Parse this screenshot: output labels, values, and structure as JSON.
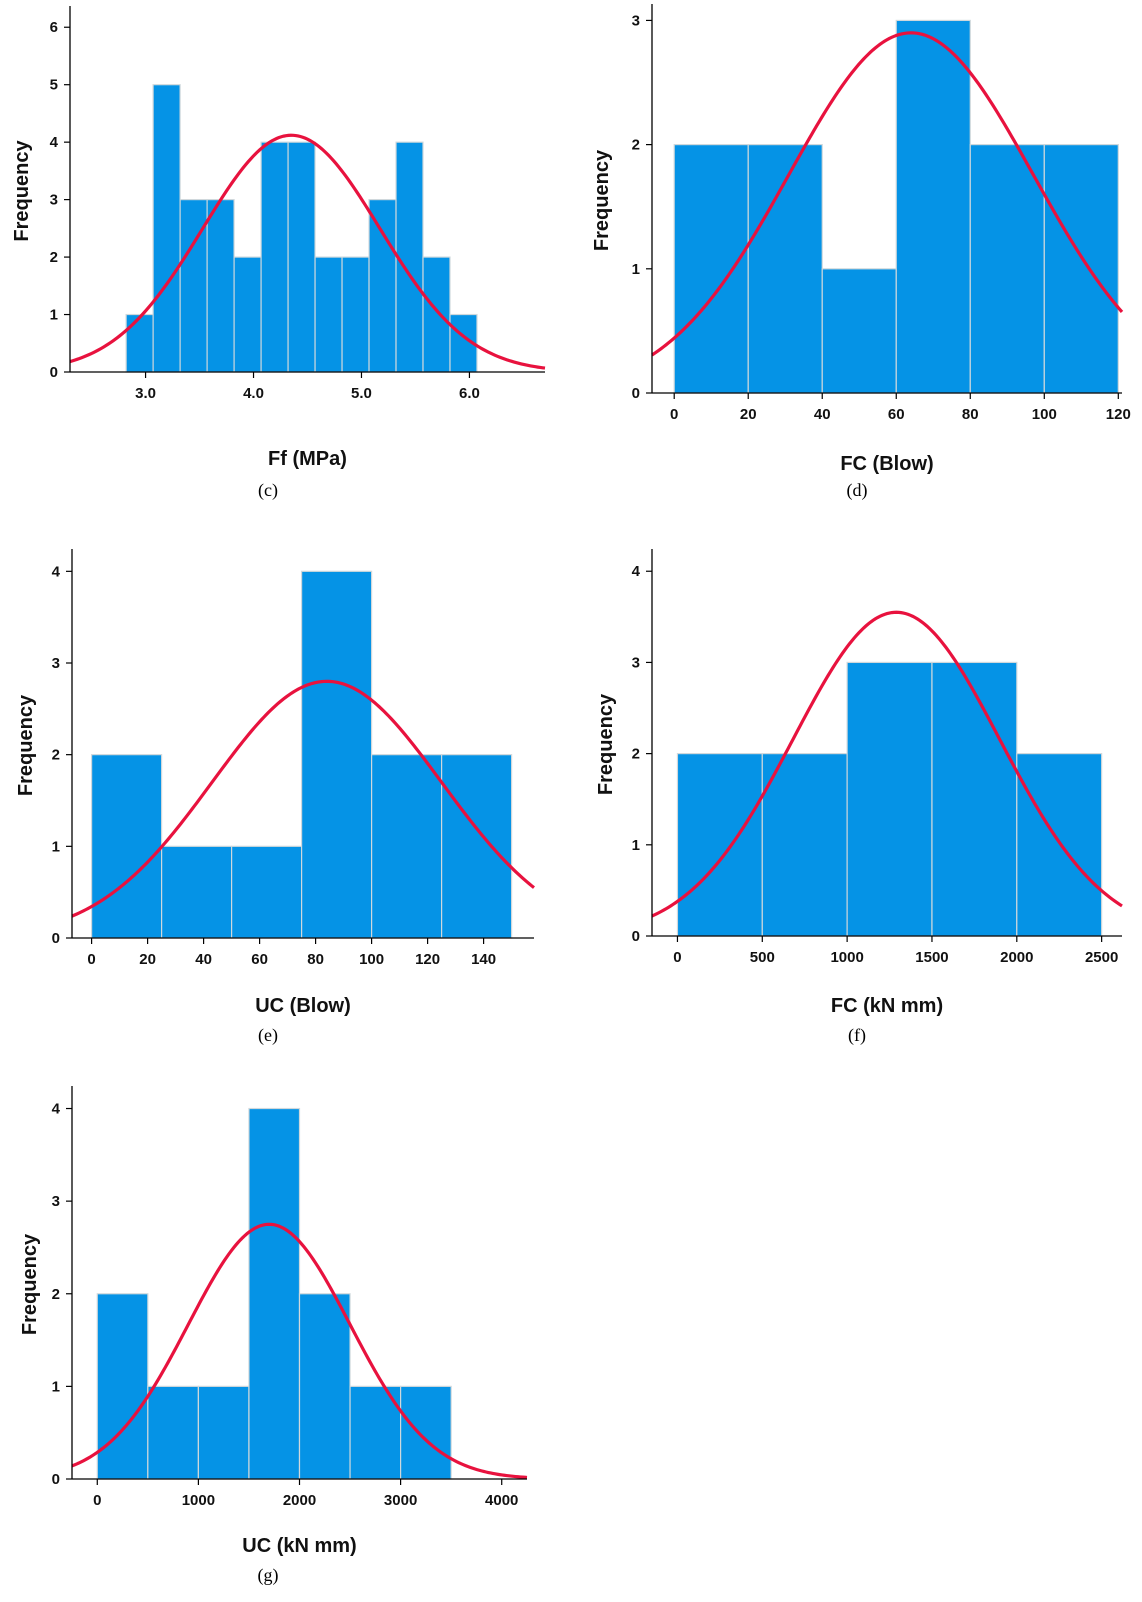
{
  "colors": {
    "bar": "#0593e6",
    "bar_edge": "#cfd8dc",
    "curve": "#e8123e",
    "axis": "#000000"
  },
  "chart_data": [
    {
      "id": "c",
      "caption": "(c)",
      "type": "bar",
      "xlabel": "Ff (MPa)",
      "ylabel": "Frequency",
      "xlim": [
        2.3,
        6.7
      ],
      "ylim": [
        0,
        6.3
      ],
      "xticks": [
        "3.0",
        "4.0",
        "5.0",
        "6.0"
      ],
      "yticks": [
        0,
        1,
        2,
        3,
        4,
        5,
        6
      ],
      "bin_width": 0.25,
      "bins": [
        {
          "start": 2.82,
          "value": 1
        },
        {
          "start": 3.07,
          "value": 5
        },
        {
          "start": 3.32,
          "value": 3
        },
        {
          "start": 3.57,
          "value": 3
        },
        {
          "start": 3.82,
          "value": 2
        },
        {
          "start": 4.07,
          "value": 4
        },
        {
          "start": 4.32,
          "value": 4
        },
        {
          "start": 4.57,
          "value": 2
        },
        {
          "start": 4.82,
          "value": 2
        },
        {
          "start": 5.07,
          "value": 3
        },
        {
          "start": 5.32,
          "value": 4
        },
        {
          "start": 5.57,
          "value": 2
        },
        {
          "start": 5.82,
          "value": 1
        }
      ],
      "normal_curve": {
        "mean": 4.35,
        "sd": 0.82,
        "peak": 4.12
      }
    },
    {
      "id": "d",
      "caption": "(d)",
      "type": "bar",
      "xlabel": "FC (Blow)",
      "ylabel": "Frequency",
      "xlim": [
        -6,
        121
      ],
      "ylim": [
        0,
        3.1
      ],
      "xticks": [
        "0",
        "20",
        "40",
        "60",
        "80",
        "100",
        "120"
      ],
      "yticks": [
        0,
        1,
        2,
        3
      ],
      "bin_width": 20,
      "bins": [
        {
          "start": 0,
          "value": 2
        },
        {
          "start": 20,
          "value": 2
        },
        {
          "start": 40,
          "value": 1
        },
        {
          "start": 60,
          "value": 3
        },
        {
          "start": 80,
          "value": 2
        },
        {
          "start": 100,
          "value": 2
        }
      ],
      "normal_curve": {
        "mean": 64,
        "sd": 33,
        "peak": 2.9
      }
    },
    {
      "id": "e",
      "caption": "(e)",
      "type": "bar",
      "xlabel": "UC (Blow)",
      "ylabel": "Frequency",
      "xlim": [
        -7,
        158
      ],
      "ylim": [
        0,
        4.2
      ],
      "xticks": [
        "0",
        "20",
        "40",
        "60",
        "80",
        "100",
        "120",
        "140"
      ],
      "yticks": [
        0,
        1,
        2,
        3,
        4
      ],
      "bin_width": 25,
      "bins": [
        {
          "start": 0,
          "value": 2
        },
        {
          "start": 25,
          "value": 1
        },
        {
          "start": 50,
          "value": 1
        },
        {
          "start": 75,
          "value": 4
        },
        {
          "start": 100,
          "value": 2
        },
        {
          "start": 125,
          "value": 2
        }
      ],
      "normal_curve": {
        "mean": 84,
        "sd": 41,
        "peak": 2.8
      }
    },
    {
      "id": "f",
      "caption": "(f)",
      "type": "bar",
      "xlabel": "FC (kN mm)",
      "ylabel": "Frequency",
      "xlim": [
        -150,
        2620
      ],
      "ylim": [
        0,
        4.2
      ],
      "xticks": [
        "0",
        "500",
        "1000",
        "1500",
        "2000",
        "2500"
      ],
      "yticks": [
        0,
        1,
        2,
        3,
        4
      ],
      "bin_width": 500,
      "bins": [
        {
          "start": 0,
          "value": 2
        },
        {
          "start": 500,
          "value": 2
        },
        {
          "start": 1000,
          "value": 3
        },
        {
          "start": 1500,
          "value": 3
        },
        {
          "start": 2000,
          "value": 2
        }
      ],
      "normal_curve": {
        "mean": 1290,
        "sd": 610,
        "peak": 3.55
      }
    },
    {
      "id": "g",
      "caption": "(g)",
      "type": "bar",
      "xlabel": "UC (kN mm)",
      "ylabel": "Frequency",
      "xlim": [
        -250,
        4250
      ],
      "ylim": [
        0,
        4.2
      ],
      "xticks": [
        "0",
        "1000",
        "2000",
        "3000",
        "4000"
      ],
      "yticks": [
        0,
        1,
        2,
        3,
        4
      ],
      "bin_width": 500,
      "bins": [
        {
          "start": 0,
          "value": 2
        },
        {
          "start": 500,
          "value": 1
        },
        {
          "start": 1000,
          "value": 1
        },
        {
          "start": 1500,
          "value": 4
        },
        {
          "start": 2000,
          "value": 2
        },
        {
          "start": 2500,
          "value": 1
        },
        {
          "start": 3000,
          "value": 1
        }
      ],
      "normal_curve": {
        "mean": 1700,
        "sd": 800,
        "peak": 2.75
      }
    }
  ]
}
